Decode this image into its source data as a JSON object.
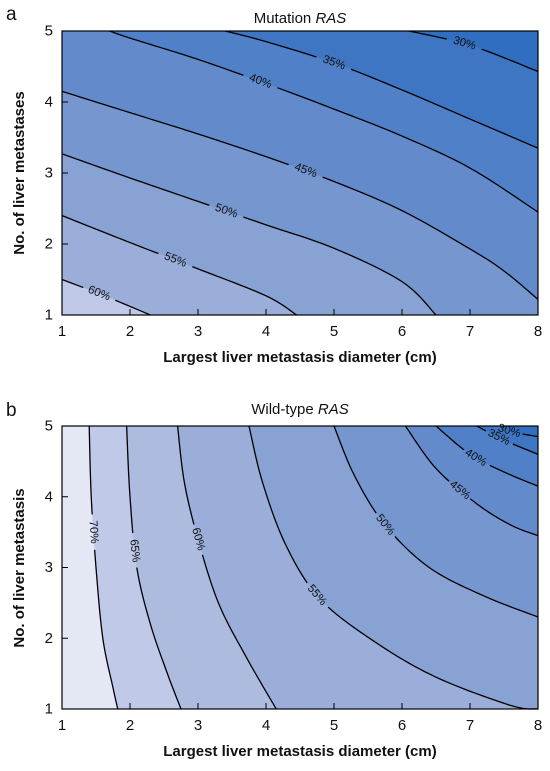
{
  "colors": {
    "line": "#000000",
    "levels": {
      "25": "#2f6ec0",
      "30": "#3f76c3",
      "35": "#5080c7",
      "40": "#638bcb",
      "45": "#7696cf",
      "50": "#88a2d4",
      "55": "#9aaed9",
      "60": "#adbbdf",
      "65": "#c0c9e7",
      "70": "#d3d9ef",
      "75": "#e4e8f5"
    }
  },
  "chart_data": [
    {
      "type": "contour",
      "panel": "a",
      "title": "Mutation",
      "title_italic": "RAS",
      "xlabel": "Largest liver metastasis diameter (cm)",
      "ylabel": "No. of liver metastases",
      "xlim": [
        1,
        8
      ],
      "ylim": [
        1,
        5
      ],
      "xticks": [
        1,
        2,
        3,
        4,
        5,
        6,
        7,
        8
      ],
      "yticks": [
        1,
        2,
        3,
        4,
        5
      ],
      "contours": [
        {
          "label": "60%",
          "level": 60,
          "points": [
            [
              1,
              1.5
            ],
            [
              1.6,
              1.28
            ],
            [
              2.3,
              1
            ]
          ]
        },
        {
          "label": "55%",
          "level": 55,
          "points": [
            [
              1,
              2.4
            ],
            [
              2,
              2.02
            ],
            [
              3,
              1.65
            ],
            [
              4,
              1.27
            ],
            [
              4.45,
              1
            ]
          ]
        },
        {
          "label": "50%",
          "level": 50,
          "points": [
            [
              1,
              3.27
            ],
            [
              2,
              2.93
            ],
            [
              3,
              2.6
            ],
            [
              4,
              2.27
            ],
            [
              5,
              1.94
            ],
            [
              6,
              1.47
            ],
            [
              6.5,
              1
            ]
          ]
        },
        {
          "label": "45%",
          "level": 45,
          "points": [
            [
              1,
              4.15
            ],
            [
              2,
              3.85
            ],
            [
              3,
              3.55
            ],
            [
              4,
              3.23
            ],
            [
              5,
              2.88
            ],
            [
              6,
              2.47
            ],
            [
              7,
              1.93
            ],
            [
              7.5,
              1.62
            ],
            [
              8,
              1.22
            ]
          ]
        },
        {
          "label": "40%",
          "level": 40,
          "points": [
            [
              1.7,
              5
            ],
            [
              2,
              4.9
            ],
            [
              3,
              4.6
            ],
            [
              4,
              4.26
            ],
            [
              5,
              3.9
            ],
            [
              6,
              3.52
            ],
            [
              7,
              3.07
            ],
            [
              8,
              2.45
            ]
          ]
        },
        {
          "label": "35%",
          "level": 35,
          "points": [
            [
              3.4,
              5
            ],
            [
              4,
              4.85
            ],
            [
              5,
              4.55
            ],
            [
              6,
              4.17
            ],
            [
              7,
              3.76
            ],
            [
              8,
              3.35
            ]
          ]
        },
        {
          "label": "30%",
          "level": 30,
          "points": [
            [
              6.1,
              5
            ],
            [
              7,
              4.8
            ],
            [
              8,
              4.43
            ]
          ]
        }
      ]
    },
    {
      "type": "contour",
      "panel": "b",
      "title": "Wild-type",
      "title_italic": "RAS",
      "xlabel": "Largest liver metastasis diameter (cm)",
      "ylabel": "No. of liver metastasis",
      "xlim": [
        1,
        8
      ],
      "ylim": [
        1,
        5
      ],
      "xticks": [
        1,
        2,
        3,
        4,
        5,
        6,
        7,
        8
      ],
      "yticks": [
        1,
        2,
        3,
        4,
        5
      ],
      "contours": [
        {
          "label": "70%",
          "level": 70,
          "points": [
            [
              1.4,
              5
            ],
            [
              1.43,
              4
            ],
            [
              1.5,
              3
            ],
            [
              1.6,
              2
            ],
            [
              1.75,
              1.3
            ],
            [
              1.82,
              1
            ]
          ]
        },
        {
          "label": "65%",
          "level": 65,
          "points": [
            [
              1.95,
              5
            ],
            [
              2,
              4
            ],
            [
              2.1,
              3
            ],
            [
              2.3,
              2.2
            ],
            [
              2.55,
              1.5
            ],
            [
              2.75,
              1
            ]
          ]
        },
        {
          "label": "60%",
          "level": 60,
          "points": [
            [
              2.7,
              5
            ],
            [
              2.8,
              4.2
            ],
            [
              3,
              3.4
            ],
            [
              3.3,
              2.5
            ],
            [
              3.7,
              1.75
            ],
            [
              4.15,
              1
            ]
          ]
        },
        {
          "label": "55%",
          "level": 55,
          "points": [
            [
              3.75,
              5
            ],
            [
              3.95,
              4.2
            ],
            [
              4.3,
              3.3
            ],
            [
              4.8,
              2.55
            ],
            [
              5.6,
              1.95
            ],
            [
              6.5,
              1.45
            ],
            [
              7.6,
              1.05
            ],
            [
              8,
              1
            ]
          ]
        },
        {
          "label": "50%",
          "level": 50,
          "points": [
            [
              5,
              5
            ],
            [
              5.3,
              4.3
            ],
            [
              5.75,
              3.6
            ],
            [
              6.4,
              3
            ],
            [
              7.2,
              2.6
            ],
            [
              8,
              2.3
            ]
          ]
        },
        {
          "label": "45%",
          "level": 45,
          "points": [
            [
              6.05,
              5
            ],
            [
              6.5,
              4.4
            ],
            [
              7.1,
              3.9
            ],
            [
              7.6,
              3.6
            ],
            [
              8,
              3.45
            ]
          ]
        },
        {
          "label": "40%",
          "level": 40,
          "points": [
            [
              6.5,
              5
            ],
            [
              7,
              4.6
            ],
            [
              7.5,
              4.35
            ],
            [
              8,
              4.15
            ]
          ]
        },
        {
          "label": "35%",
          "level": 35,
          "points": [
            [
              7.1,
              5
            ],
            [
              7.5,
              4.8
            ],
            [
              8,
              4.6
            ]
          ]
        },
        {
          "label": "30%",
          "level": 30,
          "points": [
            [
              7.4,
              5
            ],
            [
              7.6,
              4.92
            ],
            [
              8,
              4.85
            ]
          ]
        }
      ]
    }
  ],
  "panels_meta": {
    "a": {
      "letter": "a",
      "regions": [
        {
          "level": "60",
          "upper": 0
        },
        {
          "level": "55",
          "upper": 1
        },
        {
          "level": "50",
          "upper": 2
        },
        {
          "level": "45",
          "upper": 3
        },
        {
          "level": "40",
          "upper": 4
        },
        {
          "level": "35",
          "upper": 5
        },
        {
          "level": "30",
          "upper": 6
        },
        {
          "level": "25",
          "upper": -1
        }
      ],
      "base": "65"
    },
    "b": {
      "letter": "b",
      "regions": [
        {
          "level": "70",
          "upper": 0
        },
        {
          "level": "65",
          "upper": 1
        },
        {
          "level": "60",
          "upper": 2
        },
        {
          "level": "55",
          "upper": 3
        },
        {
          "level": "50",
          "upper": 4
        },
        {
          "level": "45",
          "upper": 5
        },
        {
          "level": "40",
          "upper": 6
        },
        {
          "level": "35",
          "upper": 7
        },
        {
          "level": "30",
          "upper": 8
        },
        {
          "level": "25",
          "upper": -1
        }
      ],
      "base": "75"
    }
  }
}
